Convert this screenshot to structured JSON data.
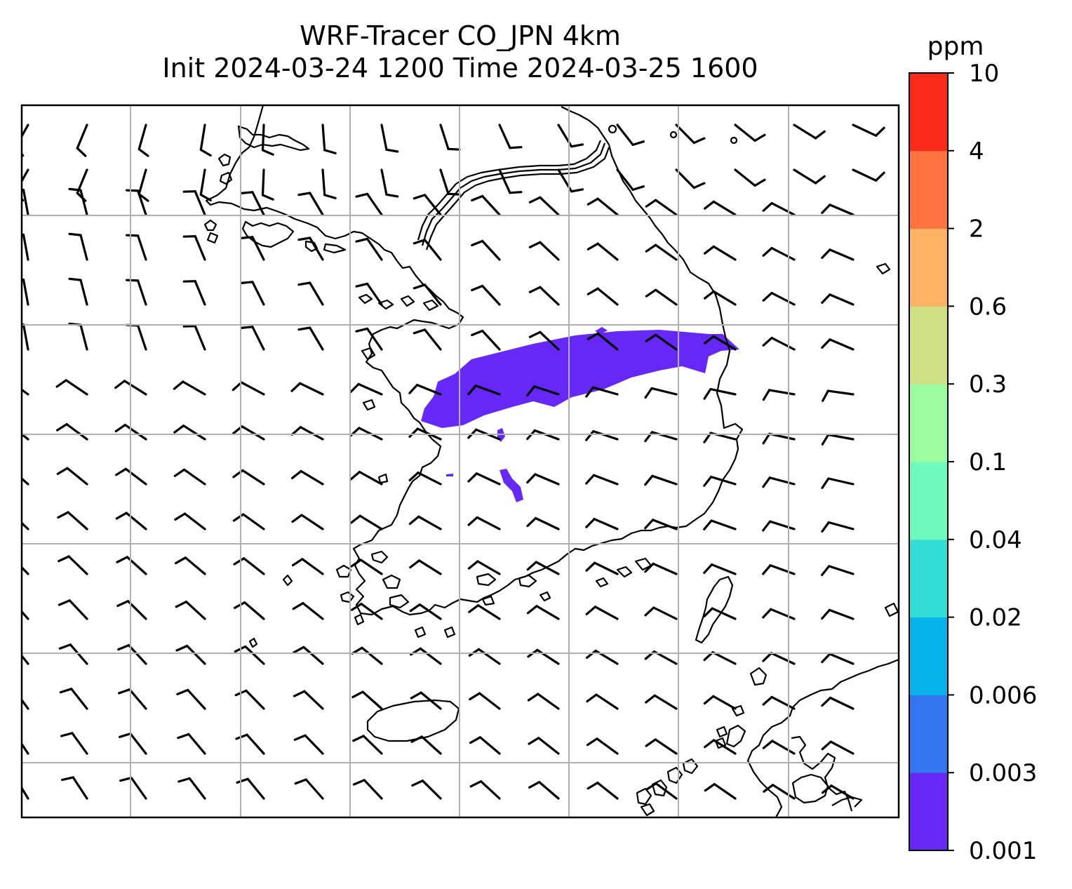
{
  "title": {
    "line1": "WRF-Tracer CO_JPN 4km",
    "line2": "Init 2024-03-24 1200 Time 2024-03-25 1600"
  },
  "colorbar": {
    "unit": "ppm",
    "ticks": [
      "0.001",
      "0.003",
      "0.006",
      "0.02",
      "0.04",
      "0.1",
      "0.3",
      "0.6",
      "2",
      "4",
      "10"
    ],
    "colors": [
      "#6628f6",
      "#3476f0",
      "#06b3ea",
      "#31ddd4",
      "#6ef9be",
      "#9cfca0",
      "#d0e185",
      "#fdb363",
      "#fd7440",
      "#fb2b1c"
    ]
  },
  "map": {
    "field": "CO tracer",
    "plume_level": "0.001",
    "plume_color": "#6628f6",
    "grid": true,
    "wind_barbs": true,
    "coastline_color": "#000000",
    "gridline_color": "#b0b0b0"
  }
}
